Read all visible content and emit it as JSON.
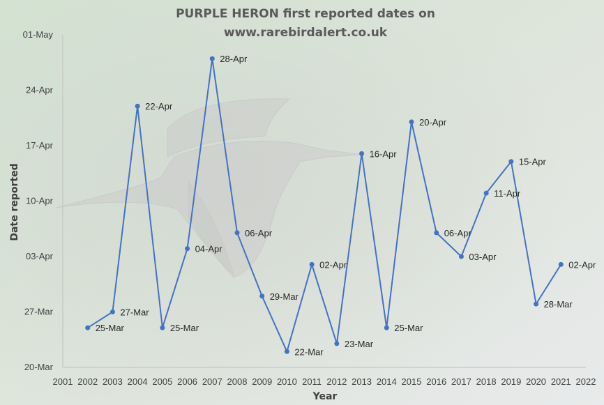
{
  "colors": {
    "line": "#4472c4",
    "axis": "#bfbfbf",
    "text": "#404040"
  },
  "chart_data": {
    "type": "line",
    "title_lines": [
      "PURPLE HERON first reported dates on",
      "www.rarebirdalert.co.uk"
    ],
    "xlabel": "Year",
    "ylabel": "Date reported",
    "x_ticks": [
      "2001",
      "2002",
      "2003",
      "2004",
      "2005",
      "2006",
      "2007",
      "2008",
      "2009",
      "2010",
      "2011",
      "2012",
      "2013",
      "2014",
      "2015",
      "2016",
      "2017",
      "2018",
      "2019",
      "2020",
      "2021",
      "2022"
    ],
    "y_ticks": [
      "20-Mar",
      "27-Mar",
      "03-Apr",
      "10-Apr",
      "17-Apr",
      "24-Apr",
      "01-May"
    ],
    "xlim": [
      2001,
      2022
    ],
    "ylim": [
      "20-Mar",
      "01-May"
    ],
    "legend": "none",
    "grid": false,
    "series": [
      {
        "x": [
          2002,
          2003,
          2004,
          2005,
          2006,
          2007,
          2008,
          2009,
          2010,
          2011,
          2012,
          2013,
          2014,
          2015,
          2016,
          2017,
          2018,
          2019,
          2020,
          2021
        ],
        "values": [
          "25-Mar",
          "27-Mar",
          "22-Apr",
          "25-Mar",
          "04-Apr",
          "28-Apr",
          "06-Apr",
          "29-Mar",
          "22-Mar",
          "02-Apr",
          "23-Mar",
          "16-Apr",
          "25-Mar",
          "20-Apr",
          "06-Apr",
          "03-Apr",
          "11-Apr",
          "15-Apr",
          "28-Mar",
          "02-Apr"
        ]
      }
    ]
  }
}
